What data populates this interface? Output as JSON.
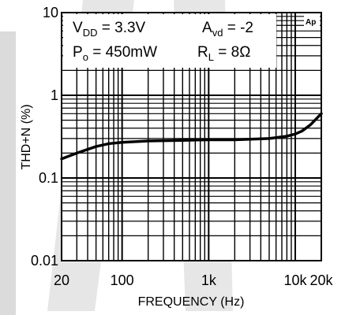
{
  "chart_data": {
    "type": "line",
    "xlabel": "FREQUENCY (Hz)",
    "ylabel": "THD+N (%)",
    "x_scale": "log",
    "y_scale": "log",
    "xlim": [
      20,
      20000
    ],
    "ylim": [
      0.01,
      10
    ],
    "grid": true,
    "x_tick_labels": [
      "20",
      "100",
      "1k",
      "10k",
      "20k"
    ],
    "x_tick_values": [
      20,
      100,
      1000,
      10000,
      20000
    ],
    "y_tick_labels": [
      "10",
      "1",
      "0.1",
      "0.01"
    ],
    "y_tick_values": [
      10,
      1,
      0.1,
      0.01
    ],
    "series": [
      {
        "x": [
          20,
          30,
          50,
          70,
          100,
          200,
          500,
          1000,
          2000,
          5000,
          8000,
          10000,
          12000,
          15000,
          20000
        ],
        "y": [
          0.17,
          0.2,
          0.24,
          0.26,
          0.27,
          0.28,
          0.285,
          0.29,
          0.29,
          0.3,
          0.32,
          0.34,
          0.37,
          0.44,
          0.6
        ],
        "color": "#000000"
      }
    ],
    "annotations": {
      "vdd": {
        "label": "V",
        "sub": "DD",
        "value": " = 3.3V"
      },
      "avd": {
        "label": "A",
        "sub": "vd",
        "value": " = -2"
      },
      "po": {
        "label": "P",
        "sub": "o",
        "value": " = 450mW"
      },
      "rl": {
        "label": "R",
        "sub": "L",
        "value": " = 8Ω"
      }
    },
    "logo": "Ap"
  }
}
